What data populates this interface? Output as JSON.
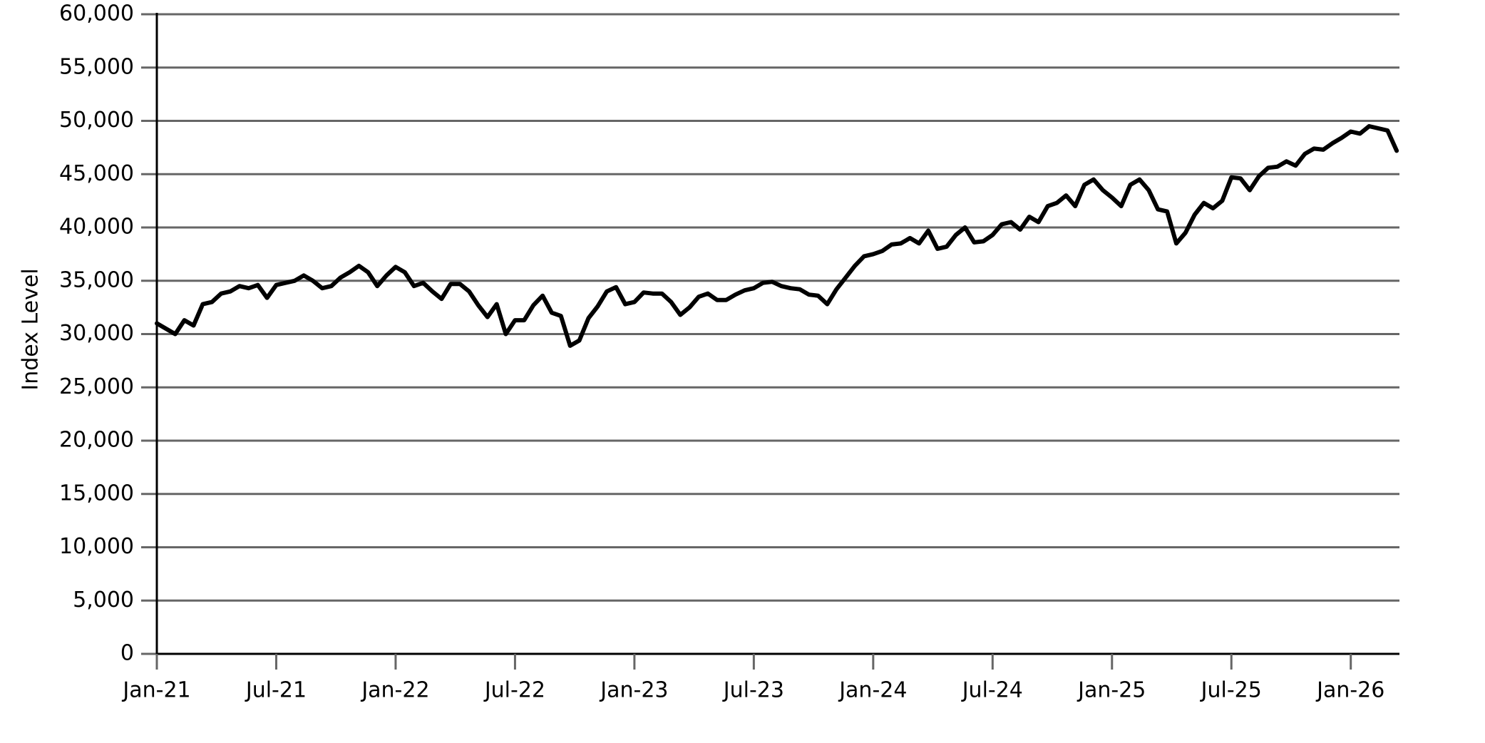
{
  "chart_data": {
    "type": "line",
    "y_label": "Index Level",
    "categories": [
      "Jan-21",
      null,
      null,
      null,
      null,
      null,
      null,
      null,
      null,
      null,
      null,
      null,
      null,
      "Jul-21",
      null,
      null,
      null,
      null,
      null,
      null,
      null,
      null,
      null,
      null,
      null,
      null,
      "Jan-22",
      null,
      null,
      null,
      null,
      null,
      null,
      null,
      null,
      null,
      null,
      null,
      null,
      "Jul-22",
      null,
      null,
      null,
      null,
      null,
      null,
      null,
      null,
      null,
      null,
      null,
      null,
      "Jan-23",
      null,
      null,
      null,
      null,
      null,
      null,
      null,
      null,
      null,
      null,
      null,
      null,
      "Jul-23",
      null,
      null,
      null,
      null,
      null,
      null,
      null,
      null,
      null,
      null,
      null,
      null,
      "Jan-24",
      null,
      null,
      null,
      null,
      null,
      null,
      null,
      null,
      null,
      null,
      null,
      null,
      "Jul-24",
      null,
      null,
      null,
      null,
      null,
      null,
      null,
      null,
      null,
      null,
      null,
      null,
      "Jan-25",
      null,
      null,
      null,
      null,
      null,
      null,
      null,
      null,
      null,
      null,
      null,
      null,
      "Jul-25",
      null,
      null,
      null,
      null,
      null,
      null,
      null,
      null,
      null,
      null,
      null,
      null,
      "Jan-26",
      null,
      null,
      null,
      null,
      null
    ],
    "values": [
      31000,
      30500,
      30000,
      31300,
      30800,
      32800,
      33000,
      33800,
      34000,
      34500,
      34300,
      34600,
      33400,
      34600,
      34800,
      35000,
      35500,
      35000,
      34300,
      34500,
      35300,
      35800,
      36400,
      35800,
      34500,
      35500,
      36300,
      35800,
      34500,
      34800,
      34000,
      33300,
      34700,
      34700,
      34000,
      32700,
      31600,
      32800,
      30000,
      31300,
      31300,
      32700,
      33600,
      32000,
      31700,
      28900,
      29400,
      31500,
      32600,
      34000,
      34400,
      32800,
      33000,
      33900,
      33800,
      33800,
      33000,
      31800,
      32500,
      33500,
      33800,
      33200,
      33200,
      33700,
      34100,
      34300,
      34800,
      34900,
      34500,
      34300,
      34200,
      33700,
      33600,
      32800,
      34200,
      35300,
      36400,
      37300,
      37500,
      37800,
      38400,
      38500,
      39000,
      38500,
      39700,
      38000,
      38200,
      39300,
      40000,
      38600,
      38700,
      39300,
      40300,
      40500,
      39800,
      41000,
      40500,
      42000,
      42300,
      43000,
      42000,
      44000,
      44500,
      43500,
      42800,
      42000,
      44000,
      44500,
      43500,
      41700,
      41500,
      38500,
      39500,
      41200,
      42300,
      41800,
      42500,
      44700,
      44600,
      43500,
      44800,
      45600,
      45700,
      46200,
      45800,
      46900,
      47400,
      47300,
      47900,
      48400,
      49000,
      48800,
      49500,
      49300,
      49100,
      47200
    ],
    "color": "#000000",
    "ylim": [
      0,
      60000
    ],
    "yticks": [
      0,
      {
        "value": 5000,
        "label": "5,000"
      },
      {
        "value": 10000,
        "label": "10,000"
      },
      {
        "value": 15000,
        "label": "15,000"
      },
      {
        "value": 20000,
        "label": "20,000"
      },
      {
        "value": 25000,
        "label": "25,000"
      },
      {
        "value": 30000,
        "label": "30,000"
      },
      {
        "value": 35000,
        "label": "35,000"
      },
      {
        "value": 40000,
        "label": "40,000"
      },
      {
        "value": 45000,
        "label": "45,000"
      },
      {
        "value": 50000,
        "label": "50,000"
      },
      {
        "value": 55000,
        "label": "55,000"
      },
      {
        "value": 60000,
        "label": "60,000"
      }
    ],
    "grid": true
  }
}
